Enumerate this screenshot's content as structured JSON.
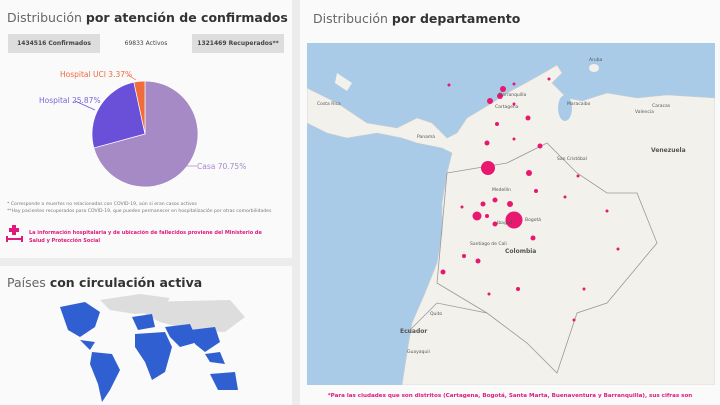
{
  "left_panel": {
    "title_light": "Distribución",
    "title_bold": "por atención de confirmados",
    "tabs": [
      {
        "label": "1434516 Confirmados",
        "active": false
      },
      {
        "label": "69833 Activos",
        "active": true
      },
      {
        "label": "1321469 Recuperados**",
        "active": false
      }
    ],
    "pie": {
      "slices": [
        {
          "label": "Casa 70.75%",
          "value": 70.75,
          "color": "#a58ac6"
        },
        {
          "label": "Hospital 25.87%",
          "value": 25.87,
          "color": "#6a4fd8"
        },
        {
          "label": "Hospital UCI 3.37%",
          "value": 3.37,
          "color": "#f26b3a"
        }
      ]
    },
    "notes": [
      "* Corresponde a muertes no relacionadas con COVID-19, aún si eran casos activos",
      "**Hay pacientes recuperados para COVID-19, que pueden permanecer en hospitalización por otras comorbilidades"
    ],
    "info_text": "La información hospitalaria y de ubicación de fallecidos proviene del Ministerio de Salud y Protección Social",
    "info_icon": "hospital-bed-icon"
  },
  "countries_panel": {
    "title_light": "Países",
    "title_bold": "con circulación activa",
    "highlight_color": "#2f5fd0"
  },
  "map_panel": {
    "title_light": "Distribución",
    "title_bold": "por departamento",
    "labels": {
      "barranquilla": "Barranquilla",
      "cartagena": "Cartagena",
      "maracaibo": "Maracaibo",
      "caracas": "Caracas",
      "valencia": "Valencia",
      "aruba": "Aruba",
      "panama": "Panamá",
      "costa_rica": "Costa Rica",
      "san_cristobal": "San Cristóbal",
      "venezuela": "Venezuela",
      "medellin": "Medellín",
      "bogota": "Bogotá",
      "ibague": "Ibagué",
      "cali": "Santiago de Cali",
      "colombia": "Colombia",
      "quito": "Quito",
      "ecuador": "Ecuador",
      "guayaquil": "Guayaquil"
    },
    "bubble_color": "#e8176f",
    "footnote": "*Para las ciudades que son distritos (Cartagena, Bogotá, Santa Marta, Buenaventura y Barranquilla), sus cifras son"
  }
}
